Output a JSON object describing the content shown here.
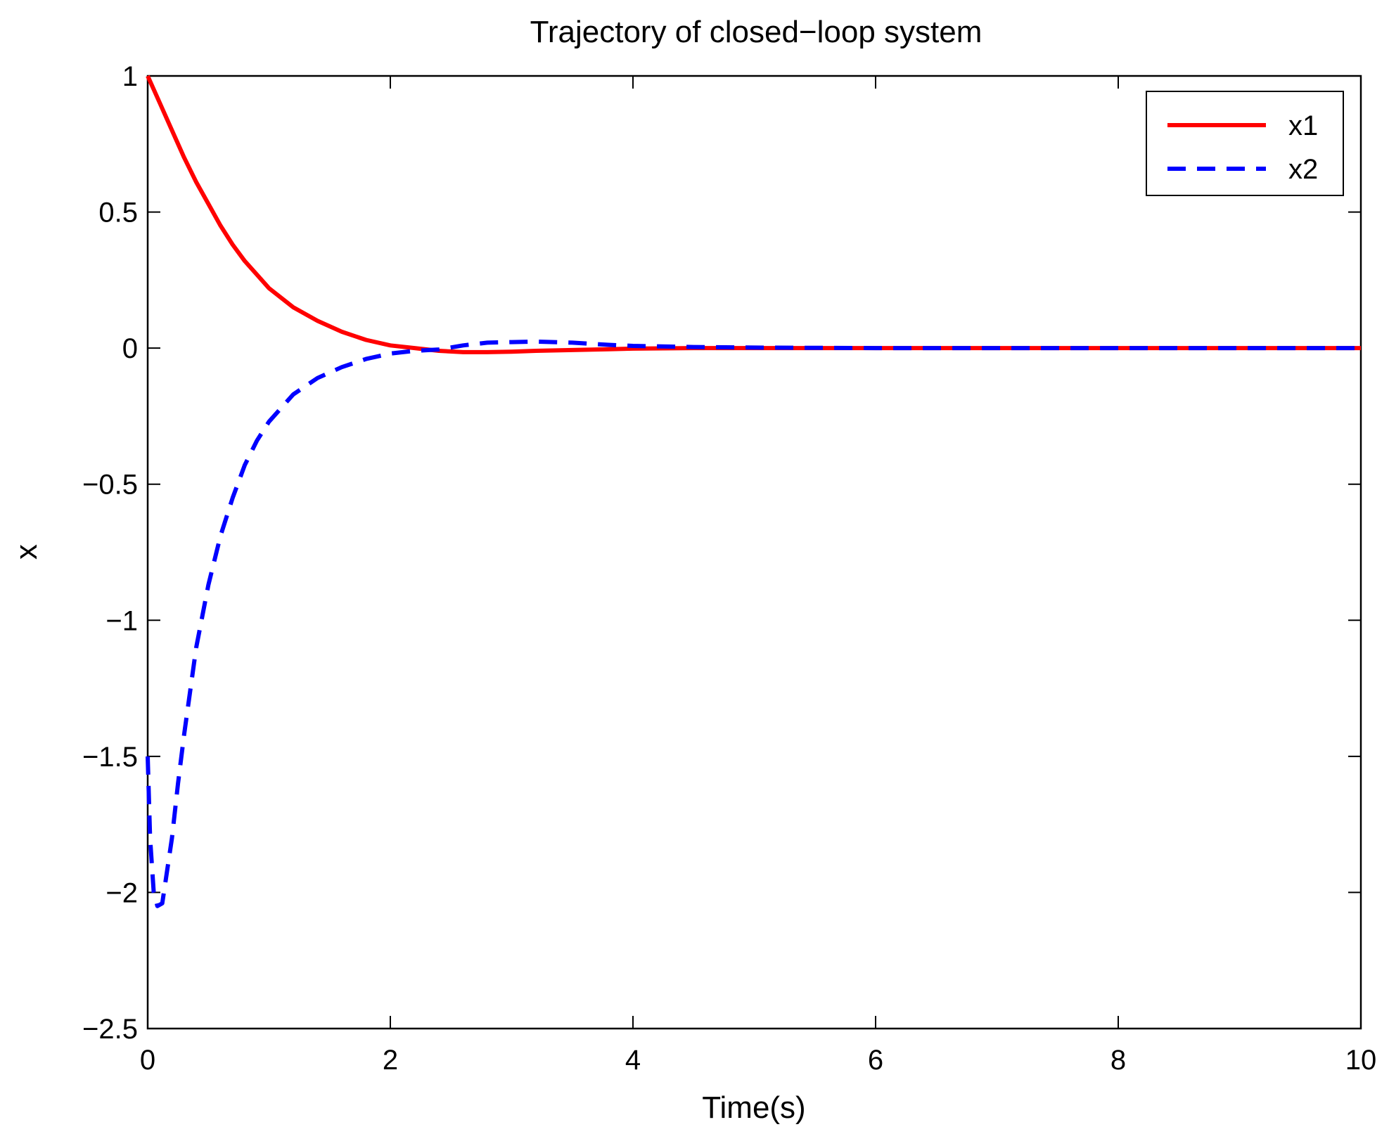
{
  "chart_data": {
    "type": "line",
    "title": "Trajectory of closed−loop system",
    "xlabel": "Time(s)",
    "ylabel": "x",
    "xlim": [
      0,
      10
    ],
    "ylim": [
      -2.5,
      1
    ],
    "xticks": [
      0,
      2,
      4,
      6,
      8,
      10
    ],
    "xtick_labels": [
      "0",
      "2",
      "4",
      "6",
      "8",
      "10"
    ],
    "yticks": [
      1,
      0.5,
      0,
      -0.5,
      -1,
      -1.5,
      -2,
      -2.5
    ],
    "ytick_labels": [
      "1",
      "0.5",
      "0",
      "−0.5",
      "−1",
      "−1.5",
      "−2",
      "−2.5"
    ],
    "grid": false,
    "legend_position": "top-right",
    "series": [
      {
        "name": "x1",
        "color": "#ff0000",
        "line_style": "solid",
        "x": [
          0,
          0.1,
          0.2,
          0.3,
          0.4,
          0.5,
          0.6,
          0.7,
          0.8,
          0.9,
          1.0,
          1.2,
          1.4,
          1.6,
          1.8,
          2.0,
          2.2,
          2.4,
          2.6,
          2.8,
          3.0,
          3.2,
          3.5,
          3.8,
          4.0,
          4.5,
          5.0,
          6.0,
          7.0,
          8.0,
          9.0,
          10.0
        ],
        "y": [
          1.0,
          0.9,
          0.8,
          0.7,
          0.61,
          0.53,
          0.45,
          0.38,
          0.32,
          0.27,
          0.22,
          0.15,
          0.1,
          0.06,
          0.03,
          0.01,
          0.0,
          -0.01,
          -0.015,
          -0.015,
          -0.013,
          -0.01,
          -0.007,
          -0.004,
          -0.002,
          0.0,
          0.0,
          0.0,
          0.0,
          0.0,
          0.0,
          0.0
        ]
      },
      {
        "name": "x2",
        "color": "#0000ff",
        "line_style": "dashed",
        "x": [
          0,
          0.02,
          0.05,
          0.08,
          0.12,
          0.15,
          0.2,
          0.25,
          0.3,
          0.4,
          0.5,
          0.6,
          0.7,
          0.8,
          0.9,
          1.0,
          1.2,
          1.4,
          1.6,
          1.8,
          2.0,
          2.2,
          2.4,
          2.6,
          2.8,
          3.0,
          3.2,
          3.5,
          3.8,
          4.0,
          4.5,
          5.0,
          6.0,
          7.0,
          8.0,
          9.0,
          10.0
        ],
        "y": [
          -1.5,
          -1.8,
          -2.0,
          -2.05,
          -2.04,
          -1.95,
          -1.8,
          -1.6,
          -1.42,
          -1.1,
          -0.87,
          -0.69,
          -0.55,
          -0.43,
          -0.34,
          -0.27,
          -0.17,
          -0.11,
          -0.07,
          -0.04,
          -0.02,
          -0.01,
          -0.005,
          0.01,
          0.02,
          0.022,
          0.024,
          0.02,
          0.012,
          0.008,
          0.004,
          0.002,
          0.0,
          0.0,
          0.0,
          0.0,
          0.0
        ]
      }
    ]
  }
}
